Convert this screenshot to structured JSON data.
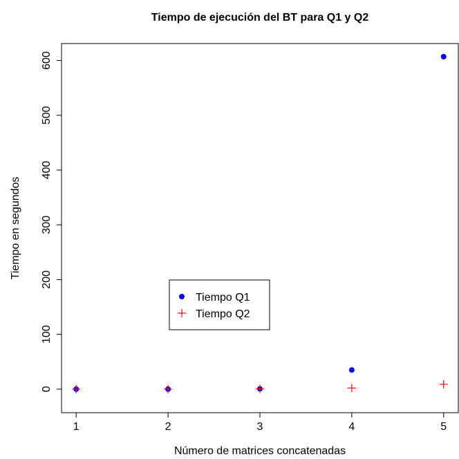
{
  "chart_data": {
    "type": "scatter",
    "title": "Tiempo de ejecución del BT para Q1 y Q2",
    "x_label": "Número de matrices concatenadas",
    "y_label": "Tiempo en segundos",
    "x": [
      1,
      2,
      3,
      4,
      5
    ],
    "series": [
      {
        "name": "Tiempo Q1",
        "color": "#0000ff",
        "marker": "dot",
        "values": [
          0,
          0,
          0.5,
          35,
          607
        ]
      },
      {
        "name": "Tiempo Q2",
        "color": "#ff0000",
        "marker": "plus",
        "values": [
          0,
          0,
          0.5,
          2,
          9
        ]
      }
    ],
    "xlim": [
      0.84,
      5.16
    ],
    "xticks": [
      1,
      2,
      3,
      4,
      5
    ],
    "ylim": [
      -43,
      631
    ],
    "yticks": [
      0,
      100,
      200,
      300,
      400,
      500,
      600
    ]
  }
}
